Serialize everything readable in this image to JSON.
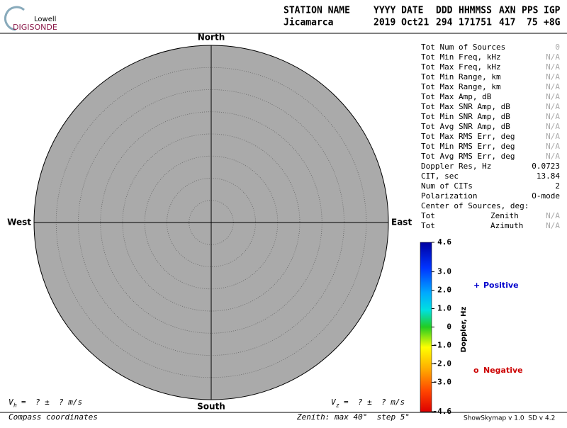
{
  "logo": {
    "top": "Lowell",
    "bottom": "DIGISONDE"
  },
  "header": {
    "columns": [
      "STATION NAME",
      "YYYY DATE",
      "DDD",
      "HHMMSS",
      "AXN",
      "PPS",
      "IGP"
    ],
    "values": [
      "Jicamarca",
      "2019 Oct21",
      "294",
      "171751",
      "417",
      "75",
      "+8G"
    ]
  },
  "compass": {
    "north": "North",
    "south": "South",
    "east": "East",
    "west": "West"
  },
  "stats": [
    {
      "label": "Tot Num of Sources",
      "value": 0,
      "color": "#aaaaaa"
    },
    {
      "label": "Tot Min Freq, kHz",
      "value": "N/A",
      "color": "#aaaaaa"
    },
    {
      "label": "Tot Max Freq, kHz",
      "value": "N/A",
      "color": "#aaaaaa"
    },
    {
      "label": "Tot Min Range, km",
      "value": "N/A",
      "color": "#aaaaaa"
    },
    {
      "label": "Tot Max Range, km",
      "value": "N/A",
      "color": "#aaaaaa"
    },
    {
      "label": "Tot Max Amp, dB",
      "value": "N/A",
      "color": "#aaaaaa"
    },
    {
      "label": "Tot Max SNR Amp, dB",
      "value": "N/A",
      "color": "#aaaaaa"
    },
    {
      "label": "Tot Min SNR Amp, dB",
      "value": "N/A",
      "color": "#aaaaaa"
    },
    {
      "label": "Tot Avg SNR Amp, dB",
      "value": "N/A",
      "color": "#aaaaaa"
    },
    {
      "label": "Tot Max RMS Err, deg",
      "value": "N/A",
      "color": "#aaaaaa"
    },
    {
      "label": "Tot Min RMS Err, deg",
      "value": "N/A",
      "color": "#aaaaaa"
    },
    {
      "label": "Tot Avg RMS Err, deg",
      "value": "N/A",
      "color": "#aaaaaa"
    },
    {
      "label": "Doppler Res, Hz",
      "value": 0.0723
    },
    {
      "label": "CIT, sec",
      "value": 13.84
    },
    {
      "label": "Num of CITs",
      "value": 2
    },
    {
      "label": "Polarization",
      "value": "O-mode"
    }
  ],
  "center": {
    "title": "Center of Sources, deg:",
    "rows": [
      {
        "label": "Tot",
        "name": "Zenith",
        "value": "N/A"
      },
      {
        "label": "Tot",
        "name": "Azimuth",
        "value": "N/A"
      }
    ]
  },
  "colorbar": {
    "label": "Doppler, Hz",
    "ticks": [
      4.6,
      {
        "value": 3,
        "label": "3.0"
      },
      {
        "value": 2,
        "label": "2.0"
      },
      {
        "value": 1,
        "label": "1.0"
      },
      0,
      {
        "value": -1,
        "label": "-1.0"
      },
      {
        "value": -2,
        "label": "-2.0"
      },
      {
        "value": -3,
        "label": "-3.0"
      },
      -4.6
    ]
  },
  "legend": [
    {
      "marker": "+",
      "text": "Positive",
      "color": "#0000cc"
    },
    {
      "marker": "o",
      "text": "Negative",
      "color": "#cc0000"
    }
  ],
  "footer": {
    "vh": {
      "symbol": "V",
      "subscript": "h",
      "text": "=  ? ±  ? m/s"
    },
    "vz": {
      "symbol": "V",
      "subscript": "z",
      "text": "=  ? ±  ? m/s"
    },
    "coords": "Compass coordinates",
    "zenith": "Zenith: max 40°  step 5°",
    "version": "ShowSkymap v 1.0  SD v 4.2"
  }
}
